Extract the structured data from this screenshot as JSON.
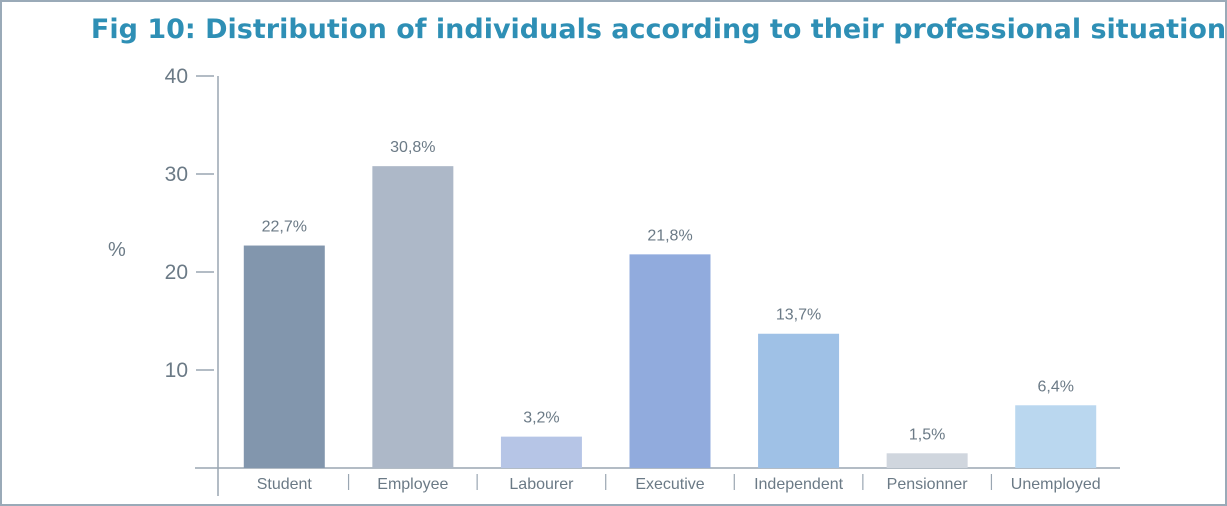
{
  "chart_data": {
    "type": "bar",
    "title": "Fig 10: Distribution of individuals according to their professional situation",
    "ylabel": "%",
    "xlabel": "",
    "ylim": [
      0,
      40
    ],
    "yticks": [
      10,
      20,
      30,
      40
    ],
    "categories": [
      "Student",
      "Employee",
      "Labourer",
      "Executive",
      "Independent",
      "Pensionner",
      "Unemployed"
    ],
    "values": [
      22.7,
      30.8,
      3.2,
      21.8,
      13.7,
      1.5,
      6.4
    ],
    "data_labels": [
      "22,7%",
      "30,8%",
      "3,2%",
      "21,8%",
      "13,7%",
      "1,5%",
      "6,4%"
    ],
    "colors": [
      "#8296ad",
      "#adb8c8",
      "#b6c5e6",
      "#91abdd",
      "#9fc1e6",
      "#d0d6de",
      "#bad7ef"
    ],
    "grid": false,
    "legend": "none"
  }
}
